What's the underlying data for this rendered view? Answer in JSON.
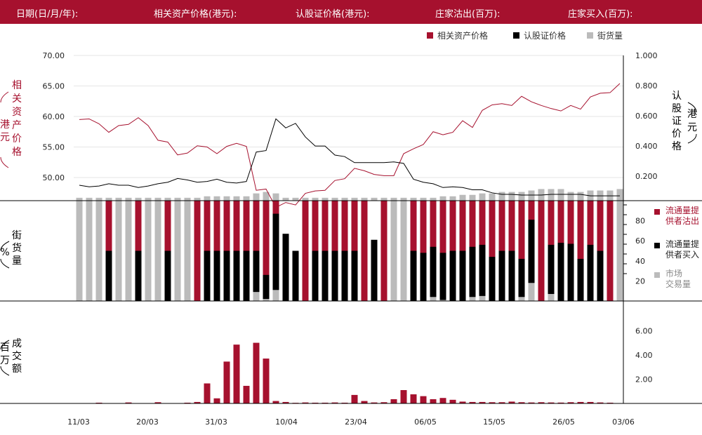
{
  "header": {
    "date_label": "日期(日/月/年):",
    "underlying_label": "相关资产价格(港元):",
    "warrant_label": "认股证价格(港元):",
    "mm_sell_label": "庄家沽出(百万):",
    "mm_buy_label": "庄家买入(百万):"
  },
  "colors": {
    "underlying": "#a6112e",
    "warrant": "#000000",
    "street": "#bbbbbb"
  },
  "chart_data": [
    {
      "type": "line",
      "legend": [
        "相关资产价格",
        "认股证价格",
        "街货量"
      ],
      "left_axis_label": "相关资产价格(港元)",
      "right_axis_label": "认股证价格(港元)",
      "left_ticks": [
        "70.00",
        "65.00",
        "60.00",
        "55.00",
        "50.00"
      ],
      "right_ticks": [
        "1.000",
        "0.800",
        "0.600",
        "0.400",
        "0.200"
      ],
      "ylim_left": [
        46.2,
        70.0
      ],
      "ylim_right": [
        0.038,
        1.0
      ],
      "street_ylim": [
        0,
        100
      ],
      "underlying_price": [
        59.5,
        59.6,
        58.8,
        57.4,
        58.5,
        58.7,
        59.8,
        58.5,
        56.1,
        55.8,
        53.7,
        54.0,
        55.2,
        55.0,
        53.9,
        55.1,
        55.6,
        55.1,
        47.9,
        48.1,
        45.1,
        45.9,
        45.5,
        47.4,
        47.8,
        47.9,
        49.5,
        49.8,
        51.5,
        51.1,
        50.5,
        50.3,
        50.3,
        53.9,
        54.7,
        55.4,
        57.5,
        57.0,
        57.4,
        59.3,
        58.2,
        61.0,
        61.9,
        62.1,
        61.8,
        63.3,
        62.4,
        61.8,
        61.3,
        60.9,
        61.8,
        61.2,
        63.2,
        63.8,
        63.9,
        65.4
      ],
      "warrant_price": [
        0.14,
        0.13,
        0.135,
        0.15,
        0.14,
        0.14,
        0.125,
        0.135,
        0.15,
        0.16,
        0.185,
        0.175,
        0.16,
        0.165,
        0.18,
        0.16,
        0.155,
        0.165,
        0.36,
        0.37,
        0.58,
        0.52,
        0.55,
        0.46,
        0.4,
        0.4,
        0.34,
        0.33,
        0.29,
        0.29,
        0.29,
        0.29,
        0.295,
        0.285,
        0.18,
        0.16,
        0.15,
        0.125,
        0.13,
        0.125,
        0.11,
        0.11,
        0.09,
        0.08,
        0.08,
        0.075,
        0.075,
        0.075,
        0.08,
        0.08,
        0.08,
        0.08,
        0.07,
        0.07,
        0.07,
        0.07
      ],
      "street_volume": [
        2,
        2,
        2,
        2,
        2,
        2,
        2,
        2,
        2,
        2,
        2,
        2,
        2,
        3,
        3,
        3,
        3,
        3,
        5,
        6,
        5,
        2,
        2,
        2,
        2,
        2,
        2,
        2,
        2,
        2,
        2,
        2,
        2,
        2,
        2,
        2,
        2,
        3,
        3,
        4,
        4,
        5,
        5,
        6,
        6,
        6,
        7,
        8,
        8,
        8,
        6,
        6,
        7,
        7,
        7,
        8
      ]
    },
    {
      "type": "bar",
      "label": "街货量(%)",
      "ticks": [
        "80",
        "60",
        "40",
        "20"
      ],
      "ylim": [
        0,
        100
      ],
      "legend": [
        "流通量提供者沽出",
        "流通量提供者买入",
        "市场交易量"
      ],
      "legend_lines": [
        [
          "流通量提",
          "供者沽出"
        ],
        [
          "流通量提",
          "供者买入"
        ],
        [
          "市场",
          "交易量"
        ]
      ],
      "liquidity_sell": [
        0,
        0,
        0,
        100,
        0,
        0,
        100,
        0,
        0,
        100,
        0,
        0,
        100,
        100,
        100,
        100,
        100,
        100,
        100,
        100,
        100,
        0,
        0,
        100,
        100,
        100,
        100,
        100,
        100,
        100,
        0,
        100,
        0,
        0,
        100,
        100,
        100,
        100,
        100,
        100,
        100,
        100,
        100,
        100,
        100,
        100,
        100,
        100,
        100,
        100,
        100,
        100,
        100,
        100,
        100,
        0
      ],
      "liquidity_buy": [
        0,
        0,
        0,
        50,
        0,
        0,
        50,
        0,
        0,
        50,
        0,
        0,
        0,
        50,
        50,
        50,
        50,
        50,
        50,
        26,
        87,
        67,
        50,
        0,
        50,
        50,
        50,
        50,
        50,
        0,
        61,
        0,
        0,
        0,
        50,
        48,
        54,
        48,
        50,
        50,
        54,
        56,
        44,
        50,
        50,
        42,
        81,
        0,
        56,
        58,
        57,
        42,
        56,
        50,
        0,
        62
      ],
      "market_volume": [
        100,
        100,
        100,
        0,
        100,
        100,
        0,
        100,
        100,
        0,
        100,
        100,
        0,
        0,
        0,
        0,
        0,
        0,
        9,
        2,
        11,
        0,
        0,
        0,
        0,
        0,
        0,
        0,
        0,
        0,
        0,
        0,
        100,
        100,
        0,
        0,
        4,
        1,
        0,
        0,
        4,
        5,
        0,
        0,
        0,
        4,
        18,
        0,
        7,
        0,
        0,
        0,
        0,
        0,
        0,
        100
      ]
    },
    {
      "type": "bar",
      "label": "成交额(百万)",
      "ticks": [
        "6.00",
        "4.00",
        "2.00"
      ],
      "ylim": [
        0,
        7.0
      ],
      "x_labels": [
        "11/03",
        "20/03",
        "31/03",
        "10/04",
        "23/04",
        "06/05",
        "15/05",
        "26/05",
        "03/06"
      ],
      "turnover": [
        0,
        0,
        0.06,
        0,
        0,
        0.08,
        0,
        0,
        0.1,
        0,
        0,
        0.06,
        0.12,
        1.65,
        0.42,
        3.45,
        4.85,
        1.45,
        5.0,
        3.7,
        0.2,
        0.12,
        0.05,
        0.08,
        0.06,
        0.06,
        0.08,
        0.06,
        0.7,
        0.2,
        0.08,
        0.1,
        0.35,
        1.1,
        0.75,
        0.6,
        0.35,
        0.45,
        0.3,
        0.15,
        0.12,
        0.12,
        0.1,
        0.1,
        0.15,
        0.1,
        0.08,
        0.1,
        0.08,
        0.07,
        0.1,
        0.12,
        0.12,
        0.08,
        0.06,
        0
      ]
    }
  ]
}
